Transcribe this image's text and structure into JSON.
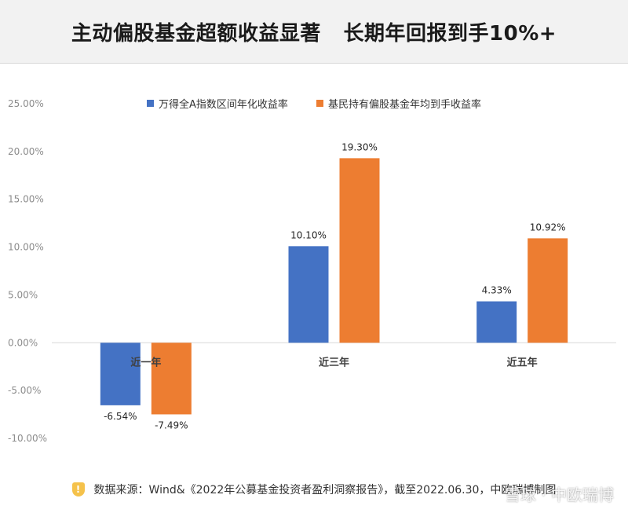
{
  "page": {
    "title": "主动偏股基金超额收益显著   长期年回报到手10%+",
    "source_text": "数据来源：Wind&《2022年公募基金投资者盈利洞察报告》，截至2022.06.30，中欧瑞博制图",
    "watermark_text": "雪球 · 中欧瑞博",
    "source_icon": "shield-exclamation-icon"
  },
  "chart_data": {
    "type": "bar",
    "categories": [
      "近一年",
      "近三年",
      "近五年"
    ],
    "series": [
      {
        "name": "万得全A指数区间年化收益率",
        "values": [
          -6.54,
          10.1,
          4.33
        ],
        "labels": [
          "-6.54%",
          "10.10%",
          "4.33%"
        ],
        "color": "#4472c4"
      },
      {
        "name": "基民持有偏股基金年均到手收益率",
        "values": [
          -7.49,
          19.3,
          10.92
        ],
        "labels": [
          "-7.49%",
          "19.30%",
          "10.92%"
        ],
        "color": "#ed7d31"
      }
    ],
    "ylim": [
      -10,
      25
    ],
    "yticks": [
      25,
      20,
      15,
      10,
      5,
      0,
      -5,
      -10
    ],
    "ytick_labels": [
      "25.00%",
      "20.00%",
      "15.00%",
      "10.00%",
      "5.00%",
      "0.00%",
      "-5.00%",
      "-10.00%"
    ],
    "legend": "top-center",
    "grid": false
  }
}
